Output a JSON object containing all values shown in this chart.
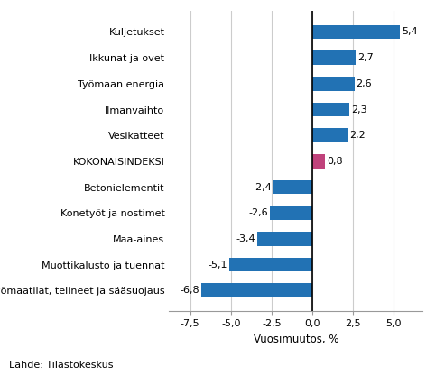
{
  "categories": [
    "Työmaatilat, telineet ja sääsuojaus",
    "Muottikalusto ja tuennat",
    "Maa-aines",
    "Konetyöt ja nostimet",
    "Betonielementit",
    "KOKONAISINDEKSI",
    "Vesikatteet",
    "Ilmanvaihto",
    "Työmaan energia",
    "Ikkunat ja ovet",
    "Kuljetukset"
  ],
  "values": [
    -6.8,
    -5.1,
    -3.4,
    -2.6,
    -2.4,
    0.8,
    2.2,
    2.3,
    2.6,
    2.7,
    5.4
  ],
  "xlim": [
    -8.8,
    6.8
  ],
  "xticks": [
    -7.5,
    -5.0,
    -2.5,
    0.0,
    2.5,
    5.0
  ],
  "xtick_labels": [
    "-7,5",
    "-5,0",
    "-2,5",
    "0,0",
    "2,5",
    "5,0"
  ],
  "xlabel": "Vuosimuutos, %",
  "source_text": "Lähde: Tilastokeskus",
  "label_fontsize": 8.0,
  "tick_fontsize": 8.0,
  "xlabel_fontsize": 8.5,
  "source_fontsize": 8.0,
  "bar_height": 0.55,
  "blue_color": "#2272b4",
  "pink_color": "#c0427b",
  "grid_color": "#cccccc",
  "spine_color": "#999999"
}
